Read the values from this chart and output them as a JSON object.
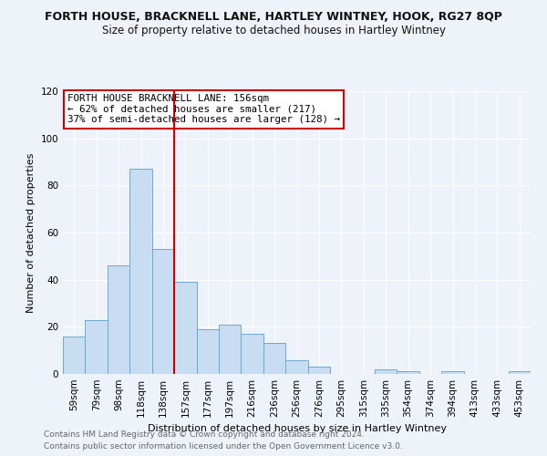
{
  "title": "FORTH HOUSE, BRACKNELL LANE, HARTLEY WINTNEY, HOOK, RG27 8QP",
  "subtitle": "Size of property relative to detached houses in Hartley Wintney",
  "xlabel": "Distribution of detached houses by size in Hartley Wintney",
  "ylabel": "Number of detached properties",
  "bar_labels": [
    "59sqm",
    "79sqm",
    "98sqm",
    "118sqm",
    "138sqm",
    "157sqm",
    "177sqm",
    "197sqm",
    "216sqm",
    "236sqm",
    "256sqm",
    "276sqm",
    "295sqm",
    "315sqm",
    "335sqm",
    "354sqm",
    "374sqm",
    "394sqm",
    "413sqm",
    "433sqm",
    "453sqm"
  ],
  "bar_heights": [
    16,
    23,
    46,
    87,
    53,
    39,
    19,
    21,
    17,
    13,
    6,
    3,
    0,
    0,
    2,
    1,
    0,
    1,
    0,
    0,
    1
  ],
  "bar_color": "#c9ddf2",
  "bar_edge_color": "#6aaad4",
  "vline_color": "#cc0000",
  "ylim": [
    0,
    120
  ],
  "yticks": [
    0,
    20,
    40,
    60,
    80,
    100,
    120
  ],
  "annotation_title": "FORTH HOUSE BRACKNELL LANE: 156sqm",
  "annotation_line1": "← 62% of detached houses are smaller (217)",
  "annotation_line2": "37% of semi-detached houses are larger (128) →",
  "annotation_box_color": "#ffffff",
  "annotation_box_edge": "#cc0000",
  "footer_line1": "Contains HM Land Registry data © Crown copyright and database right 2024.",
  "footer_line2": "Contains public sector information licensed under the Open Government Licence v3.0.",
  "background_color": "#eef2f9",
  "grid_color": "#ffffff",
  "title_fontsize": 9,
  "subtitle_fontsize": 8.5,
  "axis_fontsize": 8,
  "tick_fontsize": 7.5,
  "footer_fontsize": 6.5,
  "annotation_fontsize": 7.8
}
